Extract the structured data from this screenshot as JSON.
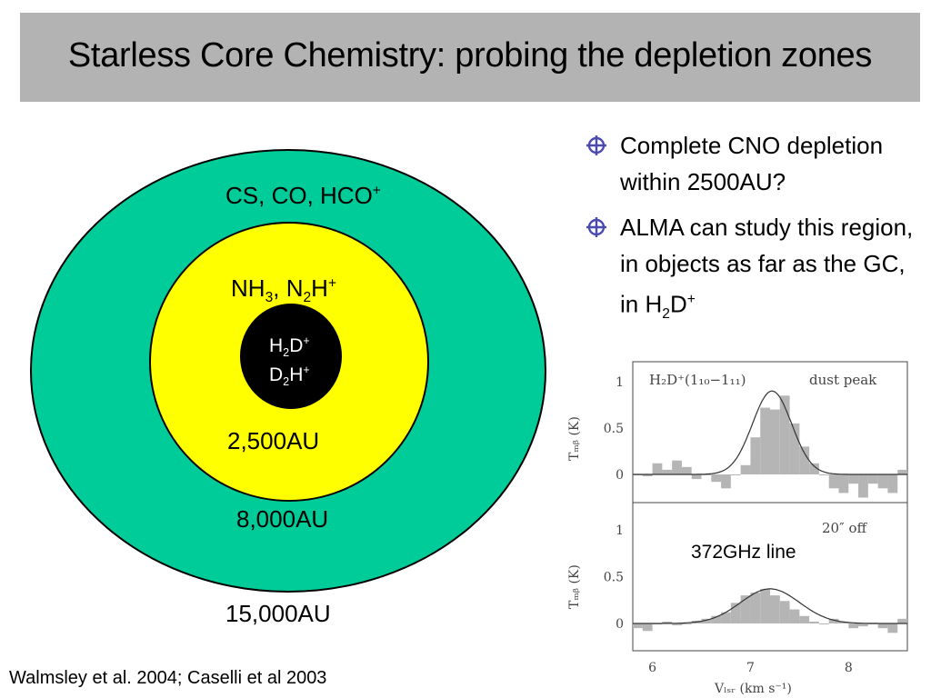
{
  "title": "Starless Core Chemistry: probing the depletion zones",
  "diagram": {
    "outer_zone": {
      "molecules": "CS, CO, HCO",
      "sup": "+",
      "radius_label": "15,000AU",
      "color": "#00cc99"
    },
    "middle_zone": {
      "m1": "NH",
      "s1": "3",
      "sep": ", ",
      "m2": "N",
      "s2": "2",
      "m3": "H",
      "sup": "+",
      "radius_label": "8,000AU",
      "color": "#ffff00"
    },
    "inner_zone": {
      "line1": {
        "a": "H",
        "s": "2",
        "b": "D",
        "sup": "+"
      },
      "line2": {
        "a": "D",
        "s": "2",
        "b": "H",
        "sup": "+"
      },
      "radius_label": "2,500AU",
      "color": "#000000"
    }
  },
  "bullets": [
    {
      "text": "Complete CNO depletion within 2500AU?"
    },
    {
      "text": "ALMA can study this region, in objects as far as the GC, in H",
      "sub": "2",
      "tail": "D",
      "sup": "+"
    }
  ],
  "spectrum": {
    "top_label": "H₂D⁺(1₁₀−1₁₁)",
    "top_tag": "dust peak",
    "bottom_tag": "20″ off",
    "note": "372GHz line",
    "ylabel": "Tₘᵦ (K)",
    "xlabel": "Vₗₛᵣ (km s⁻¹)",
    "y_ticks": [
      "1",
      "0.5",
      "0"
    ],
    "x_ticks": [
      "6",
      "7",
      "8"
    ],
    "xlim": [
      5.8,
      8.6
    ],
    "ylim": [
      -0.3,
      1.2
    ],
    "top_panel": {
      "type": "bar",
      "x": [
        5.85,
        5.95,
        6.05,
        6.15,
        6.25,
        6.35,
        6.45,
        6.55,
        6.65,
        6.75,
        6.85,
        6.95,
        7.05,
        7.15,
        7.25,
        7.35,
        7.45,
        7.55,
        7.65,
        7.75,
        7.85,
        7.95,
        8.05,
        8.15,
        8.25,
        8.35,
        8.45,
        8.55
      ],
      "values": [
        0.0,
        -0.02,
        0.12,
        0.05,
        0.15,
        0.08,
        -0.05,
        0.0,
        -0.08,
        -0.15,
        0.0,
        0.1,
        0.4,
        0.72,
        0.7,
        0.85,
        0.55,
        0.3,
        0.12,
        0.0,
        -0.15,
        -0.2,
        -0.1,
        -0.25,
        -0.1,
        -0.15,
        -0.2,
        0.05
      ],
      "fit": {
        "amp": 0.9,
        "center": 7.22,
        "sigma": 0.2
      }
    },
    "bottom_panel": {
      "type": "bar",
      "x": [
        5.85,
        5.95,
        6.05,
        6.15,
        6.25,
        6.35,
        6.45,
        6.55,
        6.65,
        6.75,
        6.85,
        6.95,
        7.05,
        7.15,
        7.25,
        7.35,
        7.45,
        7.55,
        7.65,
        7.75,
        7.85,
        7.95,
        8.05,
        8.15,
        8.25,
        8.35,
        8.45,
        8.55
      ],
      "values": [
        -0.05,
        -0.08,
        0.0,
        0.02,
        -0.02,
        0.0,
        0.03,
        0.05,
        0.08,
        0.12,
        0.22,
        0.3,
        0.33,
        0.37,
        0.3,
        0.24,
        0.15,
        0.08,
        0.02,
        0.0,
        0.05,
        0.02,
        -0.05,
        -0.03,
        0.0,
        -0.05,
        -0.1,
        0.05
      ],
      "fit": {
        "amp": 0.37,
        "center": 7.2,
        "sigma": 0.3
      }
    }
  },
  "citation": "Walmsley et al. 2004; Caselli et al 2003"
}
